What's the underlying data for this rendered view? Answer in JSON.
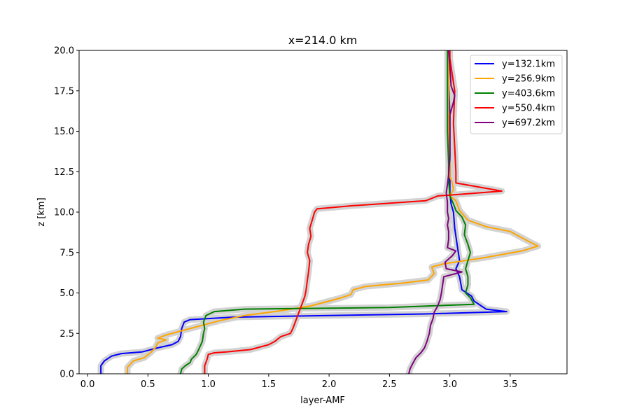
{
  "chart_data": {
    "type": "line",
    "title": "x=214.0 km",
    "xlabel": "layer-AMF",
    "ylabel": "z [km]",
    "xlim": [
      -0.07,
      3.97
    ],
    "ylim": [
      0,
      20
    ],
    "xticks": [
      0.0,
      0.5,
      1.0,
      1.5,
      2.0,
      2.5,
      3.0,
      3.5
    ],
    "xtick_labels": [
      "0.0",
      "0.5",
      "1.0",
      "1.5",
      "2.0",
      "2.5",
      "3.0",
      "3.5"
    ],
    "yticks": [
      0.0,
      2.5,
      5.0,
      7.5,
      10.0,
      12.5,
      15.0,
      17.5,
      20.0
    ],
    "ytick_labels": [
      "0.0",
      "2.5",
      "5.0",
      "7.5",
      "10.0",
      "12.5",
      "15.0",
      "17.5",
      "20.0"
    ],
    "grid": false,
    "legend_position": "top-right",
    "uncertainty_band_color": "#d3d3d3",
    "series": [
      {
        "name": "y=132.1km",
        "color": "#0000ff",
        "points": [
          [
            0.11,
            0
          ],
          [
            0.11,
            0.5
          ],
          [
            0.14,
            0.8
          ],
          [
            0.2,
            1.1
          ],
          [
            0.28,
            1.25
          ],
          [
            0.45,
            1.35
          ],
          [
            0.58,
            1.6
          ],
          [
            0.7,
            1.8
          ],
          [
            0.75,
            2.0
          ],
          [
            0.77,
            2.3
          ],
          [
            0.78,
            2.8
          ],
          [
            0.8,
            3.2
          ],
          [
            0.85,
            3.35
          ],
          [
            1.2,
            3.5
          ],
          [
            2.0,
            3.6
          ],
          [
            2.8,
            3.7
          ],
          [
            3.47,
            3.85
          ],
          [
            3.3,
            4.0
          ],
          [
            3.26,
            4.2
          ],
          [
            3.2,
            4.5
          ],
          [
            3.18,
            4.8
          ],
          [
            3.1,
            5.2
          ],
          [
            3.08,
            6.0
          ],
          [
            3.05,
            6.5
          ],
          [
            3.08,
            7.0
          ],
          [
            3.06,
            8.0
          ],
          [
            3.05,
            8.5
          ],
          [
            3.04,
            9.0
          ],
          [
            3.03,
            10.0
          ],
          [
            3.01,
            10.5
          ],
          [
            3.0,
            11.2
          ],
          [
            3.0,
            12.0
          ],
          [
            3.0,
            13.0
          ],
          [
            3.0,
            14.0
          ],
          [
            3.0,
            16.0
          ],
          [
            2.99,
            18.0
          ],
          [
            2.99,
            20.0
          ]
        ]
      },
      {
        "name": "y=256.9km",
        "color": "#ffa500",
        "points": [
          [
            0.33,
            0
          ],
          [
            0.33,
            0.4
          ],
          [
            0.38,
            0.8
          ],
          [
            0.47,
            1.0
          ],
          [
            0.52,
            1.3
          ],
          [
            0.56,
            1.6
          ],
          [
            0.58,
            1.9
          ],
          [
            0.65,
            2.1
          ],
          [
            0.58,
            2.2
          ],
          [
            0.65,
            2.4
          ],
          [
            0.8,
            2.7
          ],
          [
            0.95,
            3.0
          ],
          [
            1.1,
            3.3
          ],
          [
            1.3,
            3.6
          ],
          [
            1.6,
            3.9
          ],
          [
            1.85,
            4.2
          ],
          [
            2.0,
            4.5
          ],
          [
            2.1,
            4.7
          ],
          [
            2.18,
            4.9
          ],
          [
            2.2,
            5.2
          ],
          [
            2.3,
            5.4
          ],
          [
            2.45,
            5.5
          ],
          [
            2.6,
            5.6
          ],
          [
            2.82,
            5.8
          ],
          [
            2.87,
            6.2
          ],
          [
            2.85,
            6.6
          ],
          [
            2.95,
            6.8
          ],
          [
            3.3,
            7.2
          ],
          [
            3.6,
            7.6
          ],
          [
            3.73,
            7.9
          ],
          [
            3.65,
            8.2
          ],
          [
            3.6,
            8.4
          ],
          [
            3.5,
            8.8
          ],
          [
            3.3,
            9.1
          ],
          [
            3.15,
            9.5
          ],
          [
            3.08,
            10.1
          ],
          [
            3.05,
            10.7
          ],
          [
            3.0,
            11.0
          ],
          [
            3.03,
            11.4
          ],
          [
            3.02,
            11.8
          ],
          [
            3.0,
            12.2
          ],
          [
            3.0,
            13.0
          ],
          [
            2.99,
            14.0
          ],
          [
            2.99,
            16.0
          ],
          [
            2.99,
            18.0
          ],
          [
            2.99,
            20.0
          ]
        ]
      },
      {
        "name": "y=403.6km",
        "color": "#008000",
        "points": [
          [
            0.77,
            0
          ],
          [
            0.78,
            0.3
          ],
          [
            0.81,
            0.5
          ],
          [
            0.85,
            0.7
          ],
          [
            0.86,
            0.9
          ],
          [
            0.9,
            1.2
          ],
          [
            0.92,
            1.5
          ],
          [
            0.95,
            2.0
          ],
          [
            0.96,
            2.5
          ],
          [
            0.97,
            2.8
          ],
          [
            0.96,
            3.2
          ],
          [
            0.98,
            3.6
          ],
          [
            1.05,
            3.85
          ],
          [
            1.3,
            4.0
          ],
          [
            2.5,
            4.1
          ],
          [
            3.2,
            4.3
          ],
          [
            3.17,
            4.7
          ],
          [
            3.13,
            5.0
          ],
          [
            3.15,
            5.5
          ],
          [
            3.15,
            6.0
          ],
          [
            3.13,
            6.5
          ],
          [
            3.15,
            7.0
          ],
          [
            3.17,
            7.5
          ],
          [
            3.15,
            8.0
          ],
          [
            3.12,
            8.6
          ],
          [
            3.13,
            9.2
          ],
          [
            3.1,
            9.7
          ],
          [
            3.05,
            10.1
          ],
          [
            3.03,
            10.5
          ],
          [
            3.0,
            11.0
          ],
          [
            2.99,
            12.0
          ],
          [
            2.99,
            13.0
          ],
          [
            2.98,
            15.0
          ],
          [
            2.98,
            17.0
          ],
          [
            2.98,
            19.0
          ],
          [
            2.98,
            20.0
          ]
        ]
      },
      {
        "name": "y=550.4km",
        "color": "#ff0000",
        "points": [
          [
            0.97,
            0
          ],
          [
            0.97,
            0.5
          ],
          [
            0.99,
            0.9
          ],
          [
            1.0,
            1.2
          ],
          [
            1.05,
            1.3
          ],
          [
            1.15,
            1.35
          ],
          [
            1.35,
            1.5
          ],
          [
            1.5,
            1.8
          ],
          [
            1.55,
            2.0
          ],
          [
            1.6,
            2.3
          ],
          [
            1.68,
            2.5
          ],
          [
            1.7,
            2.8
          ],
          [
            1.72,
            3.2
          ],
          [
            1.74,
            3.6
          ],
          [
            1.76,
            4.0
          ],
          [
            1.78,
            4.4
          ],
          [
            1.8,
            4.8
          ],
          [
            1.81,
            5.2
          ],
          [
            1.82,
            5.8
          ],
          [
            1.83,
            6.3
          ],
          [
            1.84,
            7.0
          ],
          [
            1.82,
            7.5
          ],
          [
            1.83,
            8.0
          ],
          [
            1.85,
            8.5
          ],
          [
            1.84,
            9.0
          ],
          [
            1.86,
            9.5
          ],
          [
            1.88,
            10.0
          ],
          [
            1.9,
            10.2
          ],
          [
            2.2,
            10.4
          ],
          [
            2.8,
            10.7
          ],
          [
            2.9,
            11.0
          ],
          [
            3.0,
            11.05
          ],
          [
            3.43,
            11.3
          ],
          [
            3.05,
            11.8
          ],
          [
            3.05,
            12.5
          ],
          [
            3.04,
            14.0
          ],
          [
            3.03,
            15.5
          ],
          [
            3.04,
            17.5
          ],
          [
            3.02,
            18.5
          ],
          [
            3.0,
            19.5
          ],
          [
            3.0,
            20.0
          ]
        ]
      },
      {
        "name": "y=697.2km",
        "color": "#800080",
        "points": [
          [
            2.66,
            0
          ],
          [
            2.67,
            0.3
          ],
          [
            2.69,
            0.6
          ],
          [
            2.72,
            1.0
          ],
          [
            2.76,
            1.3
          ],
          [
            2.79,
            1.6
          ],
          [
            2.81,
            2.0
          ],
          [
            2.83,
            2.5
          ],
          [
            2.84,
            3.0
          ],
          [
            2.86,
            3.4
          ],
          [
            2.87,
            3.8
          ],
          [
            2.9,
            4.2
          ],
          [
            2.92,
            4.6
          ],
          [
            2.93,
            5.0
          ],
          [
            2.94,
            5.5
          ],
          [
            2.95,
            6.0
          ],
          [
            3.1,
            6.3
          ],
          [
            2.97,
            6.5
          ],
          [
            2.96,
            6.9
          ],
          [
            3.02,
            7.3
          ],
          [
            3.05,
            7.6
          ],
          [
            2.98,
            7.8
          ],
          [
            2.99,
            8.3
          ],
          [
            2.99,
            8.8
          ],
          [
            2.98,
            9.2
          ],
          [
            2.99,
            9.6
          ],
          [
            2.98,
            10.0
          ],
          [
            2.98,
            10.6
          ],
          [
            2.97,
            11.2
          ],
          [
            2.98,
            11.7
          ],
          [
            2.99,
            12.3
          ],
          [
            3.0,
            13.5
          ],
          [
            3.0,
            15.0
          ],
          [
            3.0,
            16.0
          ],
          [
            3.03,
            16.8
          ],
          [
            3.04,
            17.2
          ],
          [
            3.01,
            17.8
          ],
          [
            3.0,
            19.0
          ],
          [
            2.99,
            20.0
          ]
        ]
      }
    ]
  }
}
